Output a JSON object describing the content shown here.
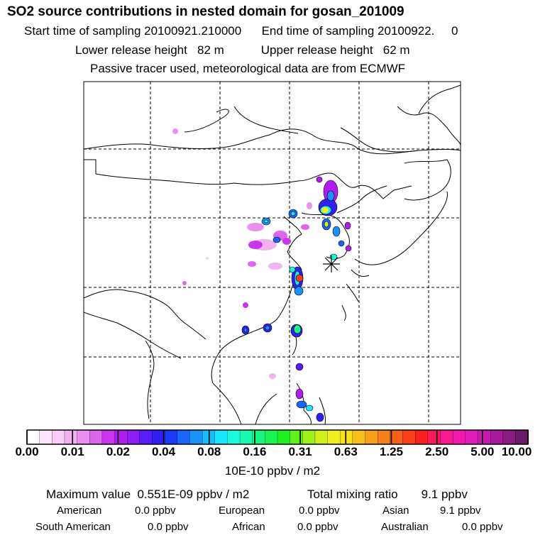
{
  "header": {
    "title": "SO2 source contributions in nested domain for gosan_201009",
    "start_label": "Start time of sampling 20100921.210000",
    "end_label": "End time of sampling 20100922.     0",
    "lower_height": "Lower release height   82 m",
    "upper_height": "Upper release height   62 m",
    "tracer_note": "Passive tracer used, meteorological data are from ECMWF"
  },
  "colorbar": {
    "ticks": [
      "0.00",
      "0.01",
      "0.02",
      "0.04",
      "0.08",
      "0.16",
      "0.31",
      "0.63",
      "1.25",
      "2.50",
      "5.00",
      "10.00"
    ],
    "units": "10E-10 ppbv / m2",
    "colors": [
      "#ffffff",
      "#fde6fb",
      "#f8cdf6",
      "#f2b2f2",
      "#ea90ee",
      "#dd66ec",
      "#cc33ee",
      "#b01cf0",
      "#8b1cf2",
      "#5a1cf4",
      "#3020f4",
      "#1a3af6",
      "#1a66f8",
      "#1a92fa",
      "#1abcfc",
      "#1ae6fc",
      "#1afae0",
      "#1af8b0",
      "#1af680",
      "#1af450",
      "#20f020",
      "#60f01a",
      "#a0f01a",
      "#d0f01a",
      "#f0f01a",
      "#f8e01a",
      "#f8c01a",
      "#f8a01a",
      "#f8801a",
      "#f8601a",
      "#f8401a",
      "#f82020",
      "#f81a5a",
      "#f81a90",
      "#f01ab0",
      "#e01ab8",
      "#c81ab0",
      "#a81a98",
      "#881a80",
      "#6a1a68"
    ]
  },
  "stats": {
    "max_label": "Maximum value  0.551E-09 ppbv / m2",
    "total_label": "Total mixing ratio       9.1 ppbv"
  },
  "regions": [
    {
      "name": "American",
      "value": "0.0 ppbv"
    },
    {
      "name": "European",
      "value": "0.0 ppbv"
    },
    {
      "name": "Asian",
      "value": "9.1 ppbv"
    },
    {
      "name": "South American",
      "value": "0.0 ppbv"
    },
    {
      "name": "African",
      "value": "0.0 ppbv"
    },
    {
      "name": "Australian",
      "value": "0.0 ppbv"
    }
  ],
  "receptor_marker": "asterisk-marker"
}
